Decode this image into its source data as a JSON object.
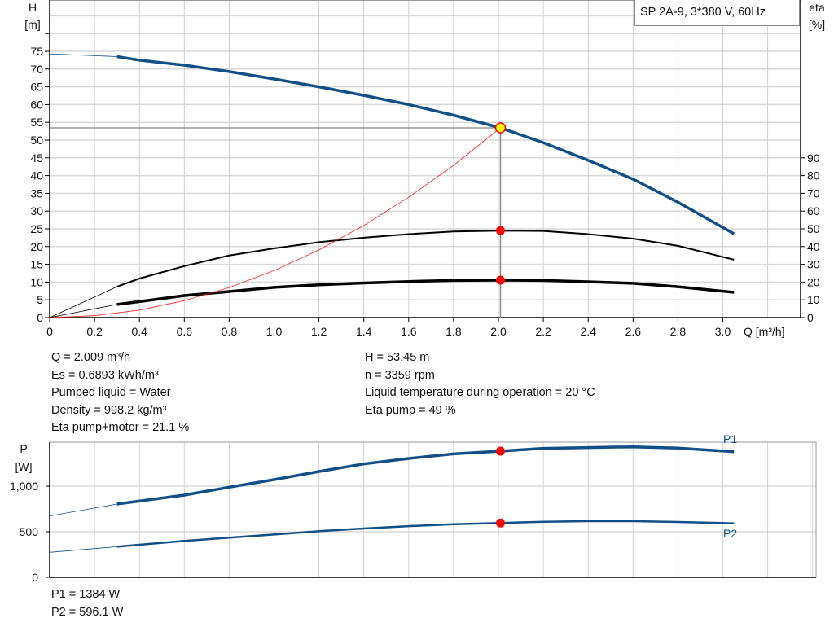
{
  "legend": "SP 2A-9, 3*380 V, 60Hz",
  "info_left": [
    "Q = 2.009 m³/h",
    "Es = 0.6893 kWh/m³",
    "Pumped liquid = Water",
    "Density = 998.2 kg/m³",
    "Eta pump+motor = 21.1 %"
  ],
  "info_right": [
    "H = 53.45 m",
    "n = 3359 rpm",
    "Liquid temperature during operation = 20 °C",
    "Eta pump = 49 %"
  ],
  "power_values": [
    "P1 = 1384 W",
    "P2 = 596.1 W"
  ],
  "colors": {
    "head": "#114f86",
    "power": "#114f86",
    "efficiency": "#000000",
    "system": "#ff2020",
    "point": "#ff0000",
    "duty_point_fill": "#ffff00"
  },
  "chart_data": [
    {
      "type": "line",
      "xlabel": "Q [m³/h]",
      "ylabel_left": [
        "H",
        "[m]"
      ],
      "ylabel_right": [
        "eta",
        "[%]"
      ],
      "xlim": [
        0,
        3.35
      ],
      "ylim_left": [
        0,
        89.5
      ],
      "ylim_right": [
        0,
        179
      ],
      "x_ticks": [
        "0",
        "0.2",
        "0.4",
        "0.6",
        "0.8",
        "1.0",
        "1.2",
        "1.4",
        "1.6",
        "1.8",
        "2.0",
        "2.2",
        "2.4",
        "2.6",
        "2.8",
        "3.0"
      ],
      "y_ticks_left": [
        "0",
        "5",
        "10",
        "15",
        "20",
        "25",
        "30",
        "35",
        "40",
        "45",
        "50",
        "55",
        "60",
        "65",
        "70",
        "75"
      ],
      "y_ticks_right": [
        "0",
        "10",
        "20",
        "30",
        "40",
        "50",
        "60",
        "70",
        "80",
        "90"
      ],
      "grid": true,
      "series": [
        {
          "key": "head",
          "axis": "left",
          "x": [
            0,
            0.3,
            0.4,
            0.6,
            0.8,
            1.0,
            1.2,
            1.4,
            1.6,
            1.8,
            2.009,
            2.2,
            2.4,
            2.6,
            2.8,
            3.05
          ],
          "y": [
            74.3,
            73.5,
            72.5,
            71.1,
            69.3,
            67.2,
            65,
            62.6,
            60,
            57,
            53.45,
            49.3,
            44.3,
            39,
            32.5,
            23.6
          ]
        },
        {
          "key": "eta_pump",
          "axis": "right",
          "x": [
            0,
            0.3,
            0.4,
            0.6,
            0.8,
            1.0,
            1.2,
            1.4,
            1.6,
            1.8,
            2.009,
            2.2,
            2.4,
            2.6,
            2.8,
            3.05
          ],
          "y": [
            0,
            17.4,
            22,
            29,
            35,
            39,
            42.5,
            45,
            47,
            48.5,
            49,
            48.8,
            47,
            44.5,
            40.4,
            32.6
          ]
        },
        {
          "key": "eta_total",
          "axis": "right",
          "x": [
            0,
            0.3,
            0.4,
            0.6,
            0.8,
            1.0,
            1.2,
            1.4,
            1.6,
            1.8,
            2.009,
            2.2,
            2.4,
            2.6,
            2.8,
            3.05
          ],
          "y": [
            0,
            7.4,
            9,
            12.4,
            14.7,
            17,
            18.5,
            19.5,
            20.3,
            20.9,
            21.1,
            20.9,
            20.2,
            19.3,
            17.4,
            14.2
          ]
        },
        {
          "key": "system",
          "axis": "left",
          "x": [
            0,
            0.2,
            0.4,
            0.6,
            0.8,
            1.0,
            1.2,
            1.4,
            1.6,
            1.8,
            2.009
          ],
          "y": [
            0,
            0.53,
            2.12,
            4.77,
            8.47,
            13.24,
            19.07,
            25.95,
            33.9,
            42.9,
            53.45
          ]
        }
      ],
      "duty_point": {
        "q": 2.009,
        "h": 53.45,
        "eta_pump": 49,
        "eta_total": 21.1
      }
    },
    {
      "type": "line",
      "ylabel": [
        "P",
        "[W]"
      ],
      "xlim": [
        0,
        3.35
      ],
      "ylim": [
        0,
        1480
      ],
      "y_ticks": [
        "0",
        "500",
        "1,000"
      ],
      "y_tick_values": [
        0,
        500,
        1000
      ],
      "grid": true,
      "series": [
        {
          "name": "P1",
          "x": [
            0,
            0.3,
            0.6,
            0.8,
            1.0,
            1.2,
            1.4,
            1.6,
            1.8,
            2.009,
            2.2,
            2.4,
            2.6,
            2.8,
            3.05
          ],
          "y": [
            673,
            804,
            902,
            988,
            1071,
            1161,
            1244,
            1304,
            1354,
            1384,
            1414,
            1423,
            1431,
            1417,
            1378
          ]
        },
        {
          "name": "P2",
          "x": [
            0,
            0.3,
            0.6,
            0.8,
            1.0,
            1.2,
            1.4,
            1.6,
            1.8,
            2.009,
            2.2,
            2.4,
            2.6,
            2.8,
            3.05
          ],
          "y": [
            274,
            336,
            399,
            435,
            470,
            506,
            536,
            562,
            583,
            596.1,
            610,
            616,
            616,
            607,
            592
          ]
        }
      ],
      "duty_point": {
        "q": 2.009,
        "p1": 1384,
        "p2": 596.1
      }
    }
  ]
}
